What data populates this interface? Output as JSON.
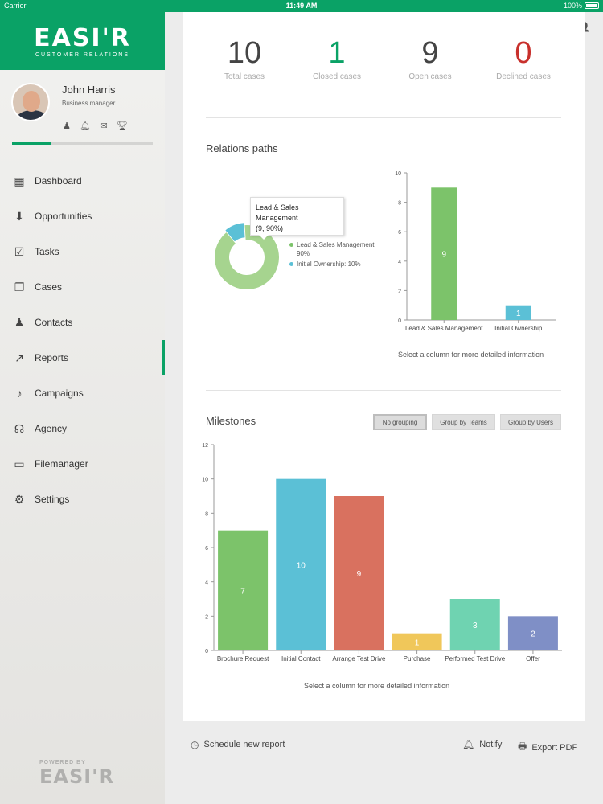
{
  "status_bar": {
    "carrier": "Carrier",
    "time": "11:49 AM",
    "battery": "100%"
  },
  "brand": {
    "logo": "EASI'R",
    "tagline": "CUSTOMER RELATIONS"
  },
  "user": {
    "name": "John Harris",
    "role": "Business manager",
    "progress": 0.28
  },
  "nav": [
    {
      "label": "Dashboard",
      "icon": "dashboard-icon"
    },
    {
      "label": "Opportunities",
      "icon": "opportunities-icon"
    },
    {
      "label": "Tasks",
      "icon": "tasks-icon"
    },
    {
      "label": "Cases",
      "icon": "cases-icon"
    },
    {
      "label": "Contacts",
      "icon": "contacts-icon"
    },
    {
      "label": "Reports",
      "icon": "reports-icon",
      "active": true
    },
    {
      "label": "Campaigns",
      "icon": "campaigns-icon"
    },
    {
      "label": "Agency",
      "icon": "agency-icon"
    },
    {
      "label": "Filemanager",
      "icon": "filemanager-icon"
    },
    {
      "label": "Settings",
      "icon": "settings-icon"
    }
  ],
  "powered": {
    "label": "POWERED BY",
    "logo": "EASI'R"
  },
  "stats": [
    {
      "value": "10",
      "label": "Total cases",
      "color": "#444444"
    },
    {
      "value": "1",
      "label": "Closed cases",
      "color": "#0aa266"
    },
    {
      "value": "9",
      "label": "Open cases",
      "color": "#444444"
    },
    {
      "value": "0",
      "label": "Declined cases",
      "color": "#c8302c"
    }
  ],
  "relations": {
    "title": "Relations paths",
    "tooltip_line1": "Lead & Sales Management",
    "tooltip_line2": "(9, 90%)",
    "legend": [
      {
        "label": "Lead & Sales Management:",
        "label2": "90%",
        "color": "#a6d48f"
      },
      {
        "label": "Initial Ownership: 10%",
        "label2": "",
        "color": "#5bc0d6"
      }
    ],
    "hint": "Select a column for more detailed information"
  },
  "milestones": {
    "title": "Milestones",
    "groupings": [
      "No grouping",
      "Group by Teams",
      "Group by Users"
    ],
    "selected_grouping": "No grouping",
    "hint": "Select a column for more detailed information"
  },
  "bottom": {
    "schedule": "Schedule new report",
    "notify": "Notify",
    "export": "Export PDF"
  },
  "chart_data": [
    {
      "type": "pie",
      "title": "",
      "categories": [
        "Lead & Sales Management",
        "Initial Ownership"
      ],
      "values": [
        90,
        10
      ],
      "colors": [
        "#a6d48f",
        "#5bc0d6"
      ],
      "donut": true
    },
    {
      "type": "bar",
      "title": "",
      "categories": [
        "Lead & Sales Management",
        "Initial Ownership"
      ],
      "values": [
        9,
        1
      ],
      "colors": [
        "#7cc36a",
        "#5bc0d6"
      ],
      "ylim": [
        0,
        10
      ],
      "yticks": [
        0,
        2,
        4,
        6,
        8,
        10
      ],
      "grid": false
    },
    {
      "type": "bar",
      "title": "Milestones",
      "categories": [
        "Brochure Request",
        "Initial Contact",
        "Arrange Test Drive",
        "Purchase",
        "Performed Test Drive",
        "Offer"
      ],
      "values": [
        7,
        10,
        9,
        1,
        3,
        2
      ],
      "colors": [
        "#7cc36a",
        "#5bc0d6",
        "#d9715f",
        "#f0c75a",
        "#6fd3b1",
        "#7f8fc6"
      ],
      "ylim": [
        0,
        12
      ],
      "yticks": [
        0,
        2,
        4,
        6,
        8,
        10,
        12
      ],
      "grid": false
    }
  ]
}
